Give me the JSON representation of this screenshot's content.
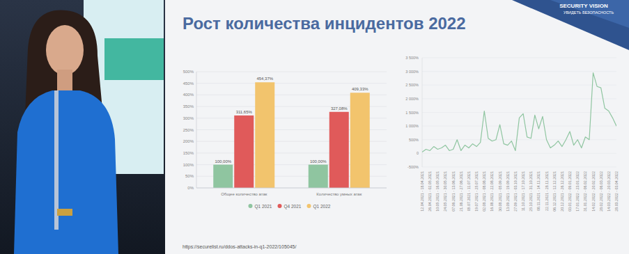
{
  "slide": {
    "title": "Рост количества инцидентов 2022",
    "brand": "SECURITY VISION",
    "tagline": "УВИДЕТЬ БЕЗОПАСНОСТЬ",
    "source": "https://securelist.ru/ddos-attacks-in-q1-2022/105045/"
  },
  "chart_data": [
    {
      "type": "bar",
      "categories": [
        "Общее количество атак",
        "Количество умных атак"
      ],
      "series": [
        {
          "name": "Q1 2021",
          "color": "#8fc5a0",
          "values": [
            100,
            100
          ],
          "value_labels": [
            "100,00%",
            "100,00%"
          ]
        },
        {
          "name": "Q4 2021",
          "color": "#e05a5a",
          "values": [
            311.65,
            327.08
          ],
          "value_labels": [
            "311,65%",
            "327,08%"
          ]
        },
        {
          "name": "Q1 2022",
          "color": "#f2c46d",
          "values": [
            454.37,
            409.33
          ],
          "value_labels": [
            "454,37%",
            "409,33%"
          ]
        }
      ],
      "ylim": [
        0,
        500
      ],
      "yticks": [
        {
          "value": 0,
          "label": "0%"
        },
        {
          "value": 50,
          "label": "50%"
        },
        {
          "value": 100,
          "label": "100%"
        },
        {
          "value": 150,
          "label": "150%"
        },
        {
          "value": 200,
          "label": "200%"
        },
        {
          "value": 250,
          "label": "250%"
        },
        {
          "value": 300,
          "label": "300%"
        },
        {
          "value": 350,
          "label": "350%"
        },
        {
          "value": 400,
          "label": "400%"
        },
        {
          "value": 450,
          "label": "450%"
        },
        {
          "value": 500,
          "label": "500%"
        }
      ],
      "grid": true,
      "data_labels": true,
      "legend": "bottom"
    },
    {
      "type": "line",
      "categories": [
        "12.04.2021 - 18.04.2021",
        null,
        "26.04.2021 - 02.05.2021",
        null,
        "10.05.2021 - 16.05.2021",
        null,
        "24.05.2021 - 30.05.2021",
        null,
        "07.06.2021 - 13.06.2021",
        null,
        "21.06.2021 - 27.06.2021",
        null,
        "05.07.2021 - 11.07.2021",
        null,
        "19.07.2021 - 25.07.2021",
        null,
        "02.08.2021 - 08.08.2021",
        null,
        "16.08.2021 - 22.08.2021",
        null,
        "30.08.2021 - 05.09.2021",
        null,
        "13.09.2021 - 19.09.2021",
        null,
        "27.09.2021 - 03.10.2021",
        null,
        "11.10.2021 - 17.10.2021",
        null,
        "25.10.2021 - 31.10.2021",
        null,
        "08.11.2021 - 14.11.2021",
        null,
        "22.11.2021 - 28.11.2021",
        null,
        "06.12.2021 - 12.12.2021",
        null,
        "20.12.2021 - 26.12.2021",
        null,
        "03.01.2022 - 09.01.2022",
        null,
        "17.01.2022 - 23.01.2022",
        null,
        "31.01.2022 - 06.02.2022",
        null,
        "14.02.2022 - 20.02.2022",
        null,
        "28.02.2022 - 06.03.2022",
        null,
        "14.03.2022 - 20.03.2022",
        null,
        "28.03.2022 - 03.04.2022"
      ],
      "values": [
        50,
        150,
        100,
        250,
        150,
        200,
        300,
        100,
        150,
        500,
        100,
        300,
        200,
        350,
        250,
        400,
        1550,
        550,
        450,
        500,
        1050,
        350,
        300,
        450,
        100,
        1300,
        1450,
        600,
        550,
        1400,
        900,
        1350,
        500,
        200,
        300,
        450,
        250,
        500,
        800,
        300,
        500,
        200,
        600,
        500,
        2950,
        2450,
        2400,
        1650,
        1550,
        1300,
        1000
      ],
      "color": "#8fc5a0",
      "ylim": [
        -500,
        3500
      ],
      "yticks": [
        {
          "value": -500,
          "label": "-500%"
        },
        0,
        {
          "value": 500,
          "label": "500%"
        },
        {
          "value": 1000,
          "label": "1 000%"
        },
        {
          "value": 1500,
          "label": "1 500%"
        },
        {
          "value": 2000,
          "label": "2 000%"
        },
        {
          "value": 2500,
          "label": "2 500%"
        },
        {
          "value": 3000,
          "label": "3 000%"
        },
        {
          "value": 3500,
          "label": "3 500%"
        }
      ],
      "grid": true
    }
  ]
}
